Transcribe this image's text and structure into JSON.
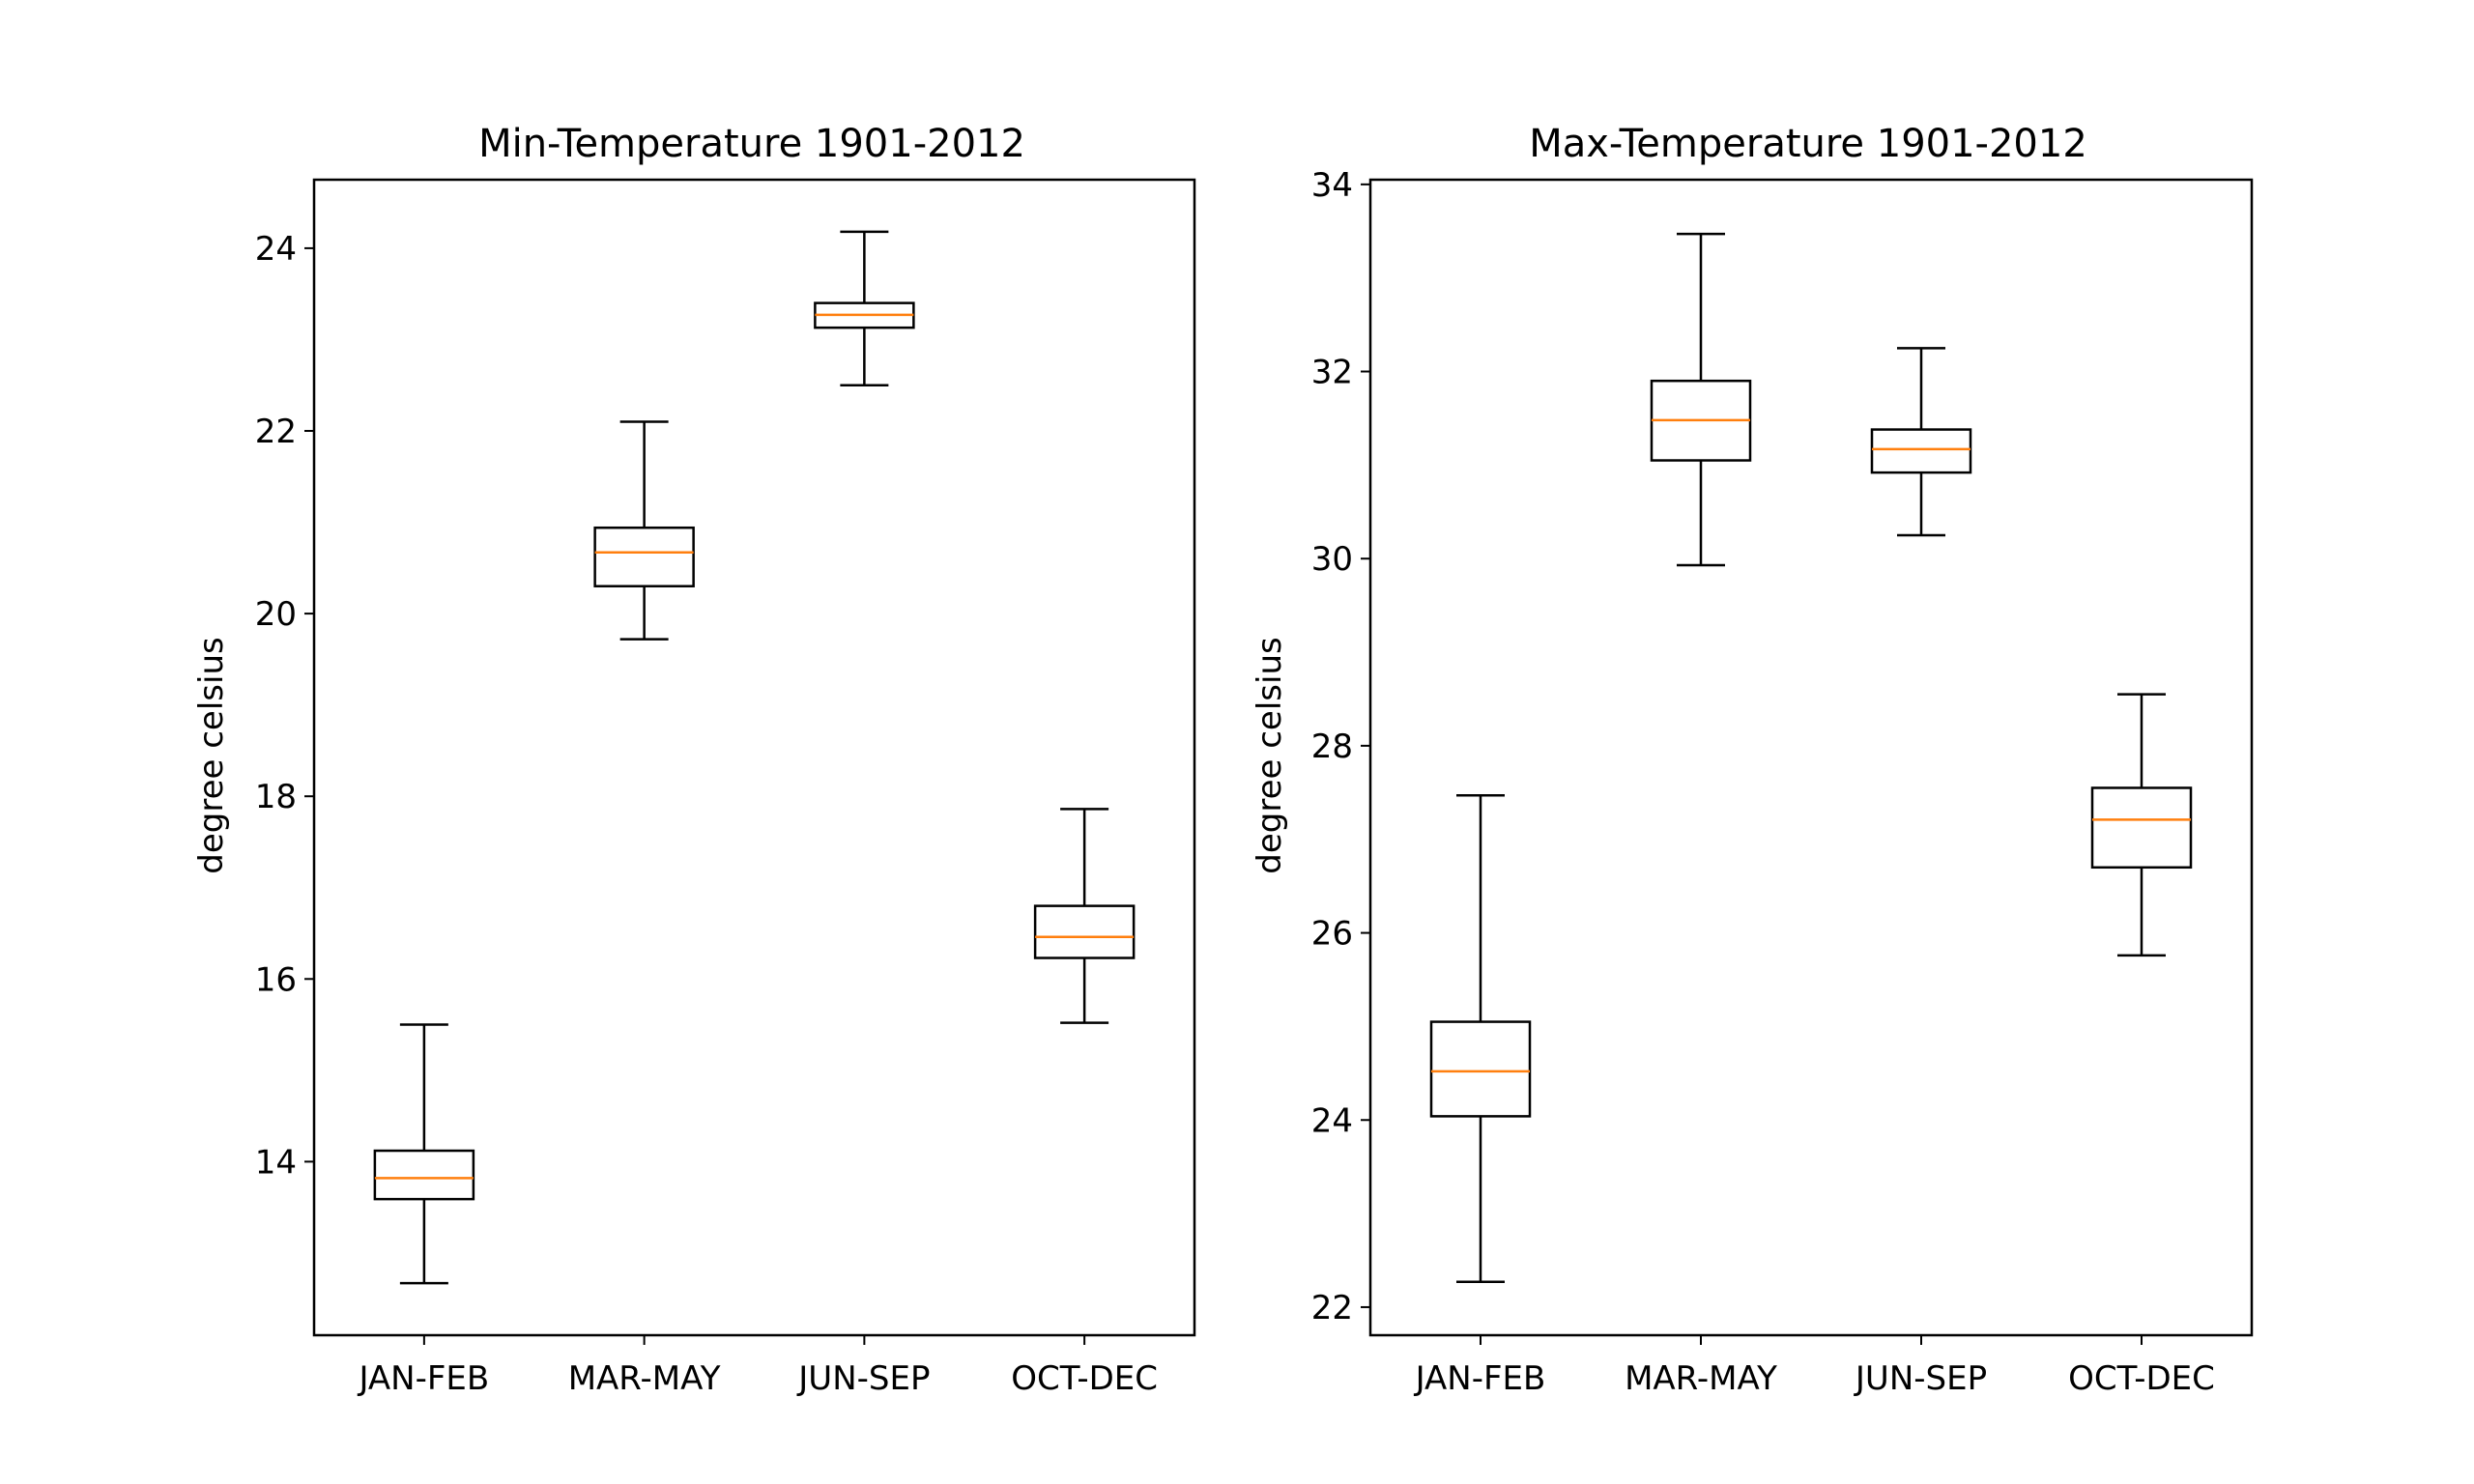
{
  "chart_data": [
    {
      "type": "box",
      "title": "Min-Temperature 1901-2012",
      "xlabel": "",
      "ylabel": "degree celsius",
      "categories": [
        "JAN-FEB",
        "MAR-MAY",
        "JUN-SEP",
        "OCT-DEC"
      ],
      "ylim": [
        12.1,
        24.75
      ],
      "yticks": [
        14,
        16,
        18,
        20,
        22,
        24
      ],
      "grid": false,
      "boxes": [
        {
          "category": "JAN-FEB",
          "whisker_low": 12.67,
          "q1": 13.59,
          "median": 13.82,
          "q3": 14.12,
          "whisker_high": 15.5
        },
        {
          "category": "MAR-MAY",
          "whisker_low": 19.72,
          "q1": 20.3,
          "median": 20.67,
          "q3": 20.94,
          "whisker_high": 22.1
        },
        {
          "category": "JUN-SEP",
          "whisker_low": 22.5,
          "q1": 23.13,
          "median": 23.27,
          "q3": 23.4,
          "whisker_high": 24.18
        },
        {
          "category": "OCT-DEC",
          "whisker_low": 15.52,
          "q1": 16.23,
          "median": 16.46,
          "q3": 16.8,
          "whisker_high": 17.86
        }
      ]
    },
    {
      "type": "box",
      "title": "Max-Temperature 1901-2012",
      "xlabel": "",
      "ylabel": "degree celsius",
      "categories": [
        "JAN-FEB",
        "MAR-MAY",
        "JUN-SEP",
        "OCT-DEC"
      ],
      "ylim": [
        21.7,
        34.05
      ],
      "yticks": [
        22,
        24,
        26,
        28,
        30,
        32,
        34
      ],
      "grid": false,
      "boxes": [
        {
          "category": "JAN-FEB",
          "whisker_low": 22.27,
          "q1": 24.04,
          "median": 24.52,
          "q3": 25.05,
          "whisker_high": 27.47
        },
        {
          "category": "MAR-MAY",
          "whisker_low": 29.93,
          "q1": 31.05,
          "median": 31.48,
          "q3": 31.9,
          "whisker_high": 33.47
        },
        {
          "category": "JUN-SEP",
          "whisker_low": 30.25,
          "q1": 30.92,
          "median": 31.17,
          "q3": 31.38,
          "whisker_high": 32.25
        },
        {
          "category": "OCT-DEC",
          "whisker_low": 25.76,
          "q1": 26.7,
          "median": 27.21,
          "q3": 27.55,
          "whisker_high": 28.55
        }
      ]
    }
  ],
  "colors": {
    "median": "#ff7f0e",
    "box": "#000000"
  }
}
